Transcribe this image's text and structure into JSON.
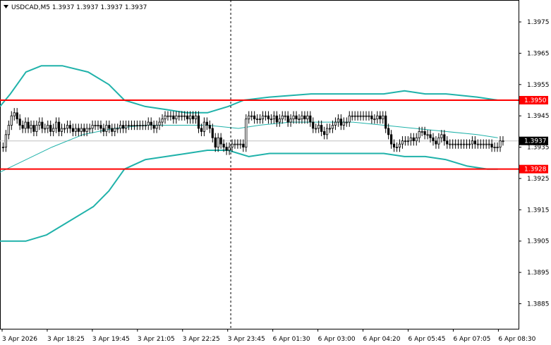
{
  "chart_data": {
    "type": "candlestick",
    "title": "USDCAD,M5  1.3937 1.3937 1.3937 1.3937",
    "symbol": "USDCAD",
    "timeframe": "M5",
    "ohlc_header": [
      "1.3937",
      "1.3937",
      "1.3937",
      "1.3937"
    ],
    "ylim": [
      1.3877,
      1.3982
    ],
    "y_ticks": [
      "1.3975",
      "1.3965",
      "1.3955",
      "1.3945",
      "1.3935",
      "1.3925",
      "1.3915",
      "1.3905",
      "1.3895",
      "1.3885"
    ],
    "y_tick_values": [
      1.3975,
      1.3965,
      1.3955,
      1.3945,
      1.3935,
      1.3925,
      1.3915,
      1.3905,
      1.3895,
      1.3885
    ],
    "x_tick_labels": [
      "3 Apr 2026",
      "3 Apr 18:25",
      "3 Apr 19:45",
      "3 Apr 21:05",
      "3 Apr 22:25",
      "3 Apr 23:45",
      "6 Apr 01:30",
      "6 Apr 03:00",
      "6 Apr 04:20",
      "6 Apr 05:45",
      "6 Apr 07:05",
      "6 Apr 08:30"
    ],
    "x_tick_positions": [
      0.0,
      0.087,
      0.174,
      0.261,
      0.348,
      0.435,
      0.522,
      0.609,
      0.696,
      0.783,
      0.87,
      0.957
    ],
    "grid": false,
    "separator_fraction": 0.445,
    "levels": [
      {
        "value": 1.395,
        "label": "1.3950",
        "color": "#ff0000"
      },
      {
        "value": 1.3928,
        "label": "1.3928",
        "color": "#ff0000"
      }
    ],
    "current_price": {
      "value": 1.3937,
      "label": "1.3937"
    },
    "upper_band": [
      [
        0,
        1.3948
      ],
      [
        0.02,
        1.3952
      ],
      [
        0.05,
        1.3959
      ],
      [
        0.08,
        1.3961
      ],
      [
        0.12,
        1.3961
      ],
      [
        0.17,
        1.3959
      ],
      [
        0.21,
        1.3955
      ],
      [
        0.24,
        1.395
      ],
      [
        0.28,
        1.3948
      ],
      [
        0.32,
        1.3947
      ],
      [
        0.36,
        1.3946
      ],
      [
        0.4,
        1.3946
      ],
      [
        0.44,
        1.3948
      ],
      [
        0.47,
        1.395
      ],
      [
        0.52,
        1.3951
      ],
      [
        0.6,
        1.3952
      ],
      [
        0.68,
        1.3952
      ],
      [
        0.74,
        1.3952
      ],
      [
        0.78,
        1.3953
      ],
      [
        0.82,
        1.3952
      ],
      [
        0.86,
        1.3952
      ],
      [
        0.92,
        1.3951
      ],
      [
        0.96,
        1.395
      ]
    ],
    "middle_band": [
      [
        0,
        1.3927
      ],
      [
        0.05,
        1.3931
      ],
      [
        0.1,
        1.3935
      ],
      [
        0.16,
        1.3939
      ],
      [
        0.22,
        1.3941
      ],
      [
        0.28,
        1.3942
      ],
      [
        0.34,
        1.3942
      ],
      [
        0.4,
        1.3942
      ],
      [
        0.46,
        1.3941
      ],
      [
        0.5,
        1.3942
      ],
      [
        0.56,
        1.3943
      ],
      [
        0.62,
        1.3943
      ],
      [
        0.68,
        1.3943
      ],
      [
        0.74,
        1.3942
      ],
      [
        0.8,
        1.3941
      ],
      [
        0.86,
        1.394
      ],
      [
        0.92,
        1.3939
      ],
      [
        0.96,
        1.3938
      ]
    ],
    "lower_band": [
      [
        0,
        1.3905
      ],
      [
        0.05,
        1.3905
      ],
      [
        0.09,
        1.3907
      ],
      [
        0.13,
        1.3911
      ],
      [
        0.18,
        1.3916
      ],
      [
        0.21,
        1.3921
      ],
      [
        0.24,
        1.3928
      ],
      [
        0.28,
        1.3931
      ],
      [
        0.32,
        1.3932
      ],
      [
        0.36,
        1.3933
      ],
      [
        0.4,
        1.3934
      ],
      [
        0.44,
        1.3934
      ],
      [
        0.48,
        1.3932
      ],
      [
        0.52,
        1.3933
      ],
      [
        0.6,
        1.3933
      ],
      [
        0.68,
        1.3933
      ],
      [
        0.74,
        1.3933
      ],
      [
        0.78,
        1.3932
      ],
      [
        0.82,
        1.3932
      ],
      [
        0.86,
        1.3931
      ],
      [
        0.9,
        1.3929
      ],
      [
        0.94,
        1.3928
      ],
      [
        0.96,
        1.3928
      ]
    ],
    "closes": [
      1.3935,
      1.3939,
      1.3942,
      1.3945,
      1.3946,
      1.3944,
      1.3942,
      1.3941,
      1.3943,
      1.3941,
      1.3942,
      1.394,
      1.3942,
      1.3943,
      1.3941,
      1.3941,
      1.3942,
      1.394,
      1.3941,
      1.3943,
      1.394,
      1.3941,
      1.3941,
      1.3942,
      1.3941,
      1.394,
      1.3941,
      1.394,
      1.3941,
      1.394,
      1.3941,
      1.3941,
      1.3942,
      1.3942,
      1.3942,
      1.3941,
      1.394,
      1.3942,
      1.3941,
      1.394,
      1.3941,
      1.3941,
      1.3942,
      1.3941,
      1.3942,
      1.3942,
      1.3942,
      1.3942,
      1.3942,
      1.3942,
      1.3942,
      1.3942,
      1.3943,
      1.3942,
      1.3941,
      1.3942,
      1.3943,
      1.3944,
      1.3945,
      1.3945,
      1.3945,
      1.3944,
      1.3945,
      1.3945,
      1.3945,
      1.3945,
      1.3944,
      1.3945,
      1.3944,
      1.3945,
      1.3941,
      1.394,
      1.3943,
      1.3942,
      1.3941,
      1.3938,
      1.3935,
      1.3938,
      1.3936,
      1.3935,
      1.3934,
      1.3935,
      1.3936,
      1.3936,
      1.3936,
      1.3936,
      1.3935,
      1.3944,
      1.3945,
      1.3945,
      1.3944,
      1.3944,
      1.3944,
      1.3945,
      1.3945,
      1.3944,
      1.3944,
      1.3945,
      1.3943,
      1.3944,
      1.3945,
      1.3945,
      1.3943,
      1.3944,
      1.3945,
      1.3944,
      1.3944,
      1.3945,
      1.3944,
      1.3945,
      1.3943,
      1.3941,
      1.3941,
      1.3942,
      1.394,
      1.3939,
      1.3941,
      1.3941,
      1.3942,
      1.3943,
      1.3944,
      1.3942,
      1.3943,
      1.3943,
      1.3945,
      1.3945,
      1.3945,
      1.3945,
      1.3945,
      1.3945,
      1.3945,
      1.3945,
      1.3944,
      1.3944,
      1.3945,
      1.3944,
      1.3945,
      1.3941,
      1.3939,
      1.3936,
      1.3935,
      1.3935,
      1.3936,
      1.3937,
      1.3937,
      1.3937,
      1.3938,
      1.3937,
      1.3938,
      1.394,
      1.394,
      1.3939,
      1.3939,
      1.3938,
      1.3937,
      1.3936,
      1.3938,
      1.3939,
      1.3937,
      1.3936,
      1.3936,
      1.3936,
      1.3936,
      1.3936,
      1.3936,
      1.3936,
      1.3936,
      1.3936,
      1.3937,
      1.3936,
      1.3936,
      1.3936,
      1.3936,
      1.3936,
      1.3936,
      1.3935,
      1.3935,
      1.3935,
      1.3937,
      1.3937
    ]
  },
  "colors": {
    "background": "#ffffff",
    "bands": "#20b2aa",
    "levels": "#ff0000",
    "candles": "#000000",
    "price_line": "#c0c0c0",
    "separator": "#000000"
  }
}
